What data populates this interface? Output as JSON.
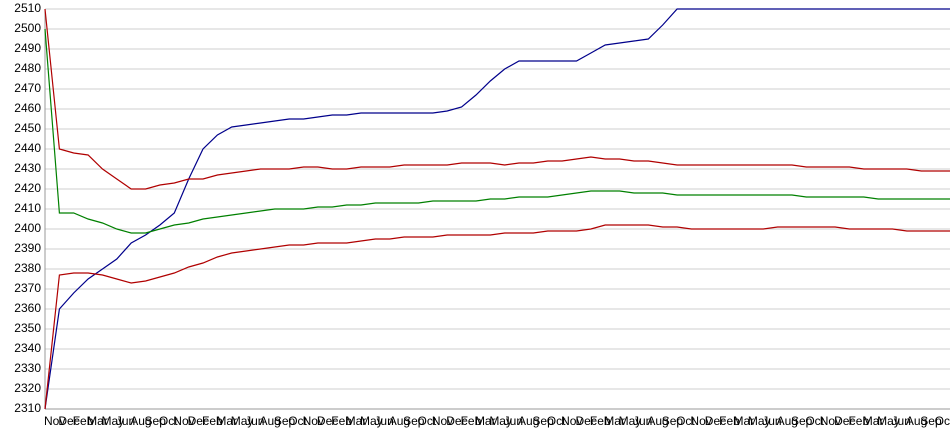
{
  "chart_data": {
    "type": "line",
    "categories": [
      "Nov",
      "Dec",
      "Feb",
      "Mar",
      "May",
      "Jun",
      "Aug",
      "Sep",
      "Oct",
      "Nov",
      "Dec",
      "Feb",
      "Mar",
      "May",
      "Jun",
      "Aug",
      "Sep",
      "Oct",
      "Nov",
      "Dec",
      "Feb",
      "Mar",
      "May",
      "Jun",
      "Aug",
      "Sep",
      "Oct",
      "Nov",
      "Dec",
      "Feb",
      "Mar",
      "May",
      "Jun",
      "Aug",
      "Sep",
      "Oct",
      "Nov",
      "Dec",
      "Feb",
      "Mar",
      "May",
      "Jun",
      "Aug",
      "Sep",
      "Oct",
      "Nov",
      "Dec",
      "Feb",
      "Mar",
      "May",
      "Jun",
      "Aug",
      "Sep",
      "Oct",
      "Nov",
      "Dec",
      "Feb",
      "Mar",
      "May",
      "Jun",
      "Aug",
      "Sep",
      "Oct",
      "Nov"
    ],
    "series": [
      {
        "color": "#00008b",
        "values": [
          2310,
          2360,
          2368,
          2375,
          2380,
          2385,
          2393,
          2397,
          2402,
          2408,
          2425,
          2440,
          2447,
          2451,
          2452,
          2453,
          2454,
          2455,
          2455,
          2456,
          2457,
          2457,
          2458,
          2458,
          2458,
          2458,
          2458,
          2458,
          2459,
          2461,
          2467,
          2474,
          2480,
          2484,
          2484,
          2484,
          2484,
          2484,
          2488,
          2492,
          2493,
          2494,
          2495,
          2502,
          2510,
          2510,
          2510,
          2510,
          2510,
          2510,
          2510,
          2510,
          2510,
          2510,
          2510,
          2510,
          2510,
          2510,
          2510,
          2510,
          2510,
          2510,
          2510,
          2510
        ]
      },
      {
        "color": "#b00000",
        "values": [
          2510,
          2440,
          2438,
          2437,
          2430,
          2425,
          2420,
          2420,
          2422,
          2423,
          2425,
          2425,
          2427,
          2428,
          2429,
          2430,
          2430,
          2430,
          2431,
          2431,
          2430,
          2430,
          2431,
          2431,
          2431,
          2432,
          2432,
          2432,
          2432,
          2433,
          2433,
          2433,
          2432,
          2433,
          2433,
          2434,
          2434,
          2435,
          2436,
          2435,
          2435,
          2434,
          2434,
          2433,
          2432,
          2432,
          2432,
          2432,
          2432,
          2432,
          2432,
          2432,
          2432,
          2431,
          2431,
          2431,
          2431,
          2430,
          2430,
          2430,
          2430,
          2429,
          2429,
          2429
        ]
      },
      {
        "color": "#008000",
        "values": [
          2500,
          2408,
          2408,
          2405,
          2403,
          2400,
          2398,
          2398,
          2400,
          2402,
          2403,
          2405,
          2406,
          2407,
          2408,
          2409,
          2410,
          2410,
          2410,
          2411,
          2411,
          2412,
          2412,
          2413,
          2413,
          2413,
          2413,
          2414,
          2414,
          2414,
          2414,
          2415,
          2415,
          2416,
          2416,
          2416,
          2417,
          2418,
          2419,
          2419,
          2419,
          2418,
          2418,
          2418,
          2417,
          2417,
          2417,
          2417,
          2417,
          2417,
          2417,
          2417,
          2417,
          2416,
          2416,
          2416,
          2416,
          2416,
          2415,
          2415,
          2415,
          2415,
          2415,
          2415
        ]
      },
      {
        "color": "#b00000",
        "values": [
          2310,
          2377,
          2378,
          2378,
          2377,
          2375,
          2373,
          2374,
          2376,
          2378,
          2381,
          2383,
          2386,
          2388,
          2389,
          2390,
          2391,
          2392,
          2392,
          2393,
          2393,
          2393,
          2394,
          2395,
          2395,
          2396,
          2396,
          2396,
          2397,
          2397,
          2397,
          2397,
          2398,
          2398,
          2398,
          2399,
          2399,
          2399,
          2400,
          2402,
          2402,
          2402,
          2402,
          2401,
          2401,
          2400,
          2400,
          2400,
          2400,
          2400,
          2400,
          2401,
          2401,
          2401,
          2401,
          2401,
          2400,
          2400,
          2400,
          2400,
          2399,
          2399,
          2399,
          2399
        ]
      }
    ],
    "ylim": [
      2310,
      2510
    ],
    "yticks": [
      2310,
      2320,
      2330,
      2340,
      2350,
      2360,
      2370,
      2380,
      2390,
      2400,
      2410,
      2420,
      2430,
      2440,
      2450,
      2460,
      2470,
      2480,
      2490,
      2500,
      2510
    ],
    "grid": true
  }
}
